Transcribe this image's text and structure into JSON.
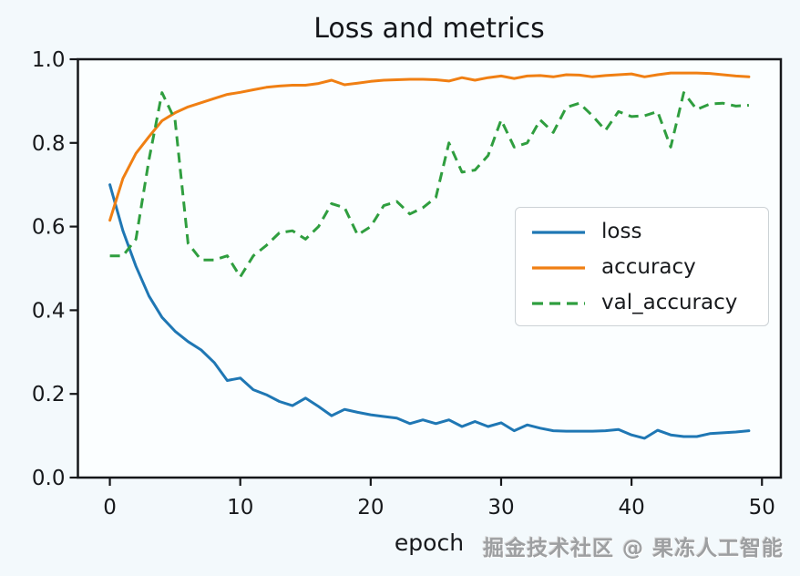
{
  "figure": {
    "title": "Loss and metrics",
    "xlabel": "epoch",
    "watermark": "掘金技术社区 @ 果冻人工智能"
  },
  "colors": {
    "loss": "#1f77b4",
    "accuracy": "#f07f13",
    "val_accuracy": "#2f9e3f",
    "axis": "#15171a",
    "plot_background": "#fbfeff",
    "page_background": "#f3f9fc",
    "tick_label": "#17191c"
  },
  "chart_data": {
    "type": "line",
    "title": "Loss and metrics",
    "xlabel": "epoch",
    "ylabel": "",
    "grid": false,
    "legend_position": "center right",
    "xlim": [
      -2.45,
      51.45
    ],
    "ylim": [
      0.0,
      1.0
    ],
    "x_ticks": [
      0,
      10,
      20,
      30,
      40,
      50
    ],
    "x_tick_labels": [
      "0",
      "10",
      "20",
      "30",
      "40",
      "50"
    ],
    "y_ticks": [
      0.0,
      0.2,
      0.4,
      0.6,
      0.8,
      1.0
    ],
    "y_tick_labels": [
      "0.0",
      "0.2",
      "0.4",
      "0.6",
      "0.8",
      "1.0"
    ],
    "x": [
      0,
      1,
      2,
      3,
      4,
      5,
      6,
      7,
      8,
      9,
      10,
      11,
      12,
      13,
      14,
      15,
      16,
      17,
      18,
      19,
      20,
      21,
      22,
      23,
      24,
      25,
      26,
      27,
      28,
      29,
      30,
      31,
      32,
      33,
      34,
      35,
      36,
      37,
      38,
      39,
      40,
      41,
      42,
      43,
      44,
      45,
      46,
      47,
      48,
      49
    ],
    "series": [
      {
        "name": "loss",
        "color": "#1f77b4",
        "style": "solid",
        "values": [
          0.7,
          0.59,
          0.505,
          0.434,
          0.383,
          0.35,
          0.325,
          0.305,
          0.275,
          0.232,
          0.238,
          0.21,
          0.198,
          0.182,
          0.172,
          0.19,
          0.17,
          0.148,
          0.163,
          0.156,
          0.15,
          0.146,
          0.142,
          0.129,
          0.138,
          0.129,
          0.138,
          0.122,
          0.134,
          0.122,
          0.131,
          0.112,
          0.126,
          0.118,
          0.112,
          0.111,
          0.111,
          0.111,
          0.112,
          0.115,
          0.102,
          0.094,
          0.113,
          0.102,
          0.098,
          0.098,
          0.105,
          0.107,
          0.109,
          0.112
        ]
      },
      {
        "name": "accuracy",
        "color": "#f07f13",
        "style": "solid",
        "values": [
          0.615,
          0.715,
          0.775,
          0.815,
          0.853,
          0.872,
          0.886,
          0.896,
          0.906,
          0.916,
          0.921,
          0.927,
          0.933,
          0.936,
          0.938,
          0.938,
          0.942,
          0.95,
          0.939,
          0.943,
          0.947,
          0.95,
          0.951,
          0.952,
          0.952,
          0.951,
          0.948,
          0.956,
          0.95,
          0.956,
          0.96,
          0.954,
          0.96,
          0.961,
          0.958,
          0.963,
          0.962,
          0.958,
          0.961,
          0.963,
          0.965,
          0.958,
          0.963,
          0.967,
          0.967,
          0.967,
          0.966,
          0.963,
          0.96,
          0.958
        ]
      },
      {
        "name": "val_accuracy",
        "color": "#2f9e3f",
        "style": "dashed",
        "values": [
          0.53,
          0.53,
          0.57,
          0.76,
          0.92,
          0.855,
          0.56,
          0.52,
          0.52,
          0.53,
          0.48,
          0.53,
          0.555,
          0.585,
          0.59,
          0.57,
          0.6,
          0.655,
          0.645,
          0.58,
          0.6,
          0.65,
          0.66,
          0.63,
          0.645,
          0.67,
          0.8,
          0.73,
          0.735,
          0.77,
          0.855,
          0.79,
          0.8,
          0.855,
          0.825,
          0.885,
          0.895,
          0.865,
          0.83,
          0.875,
          0.863,
          0.865,
          0.875,
          0.79,
          0.92,
          0.88,
          0.893,
          0.895,
          0.888,
          0.89
        ]
      }
    ]
  }
}
